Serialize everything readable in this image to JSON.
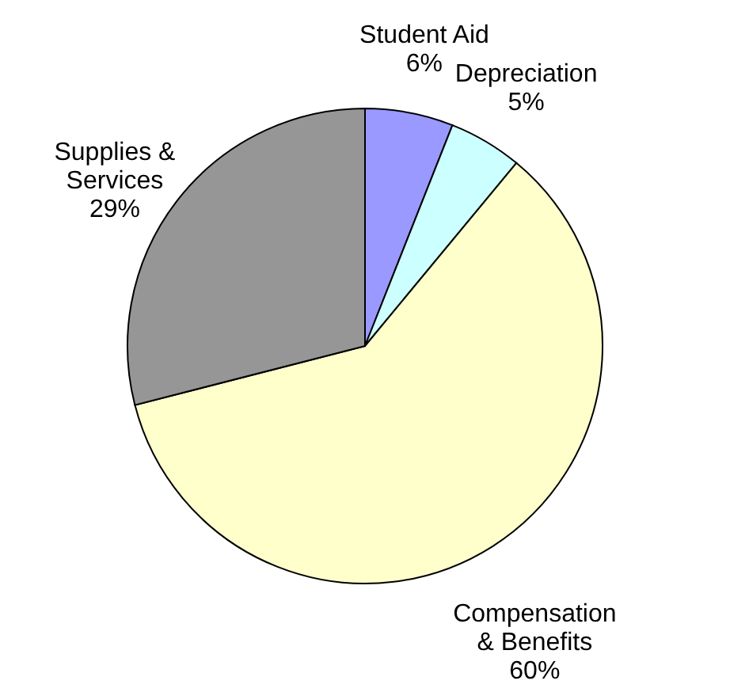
{
  "chart_data": {
    "type": "pie",
    "categories": [
      "Student Aid",
      "Depreciation",
      "Compensation & Benefits",
      "Supplies & Services"
    ],
    "values": [
      6,
      5,
      60,
      29
    ],
    "value_labels": [
      "6%",
      "5%",
      "60%",
      "29%"
    ],
    "colors": [
      "#9999ff",
      "#ccffff",
      "#ffffcc",
      "#969696"
    ]
  }
}
